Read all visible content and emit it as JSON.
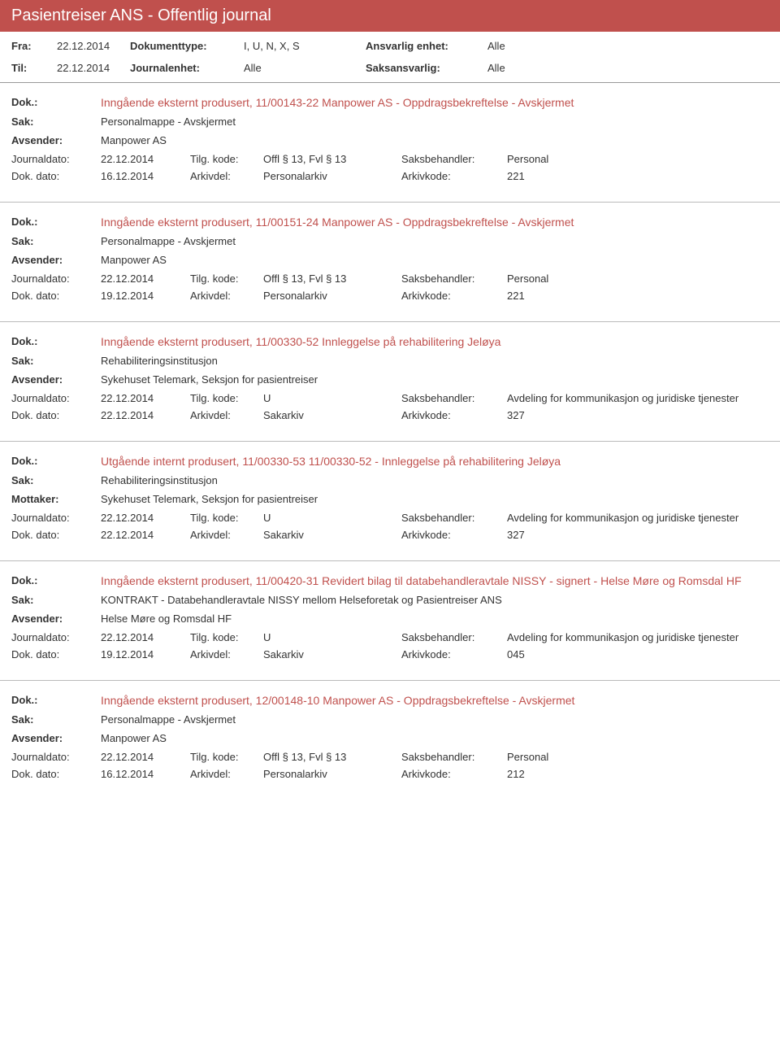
{
  "header": {
    "title": "Pasientreiser ANS - Offentlig journal"
  },
  "colors": {
    "accent": "#c0504d",
    "text": "#333333",
    "border": "#bbbbbb"
  },
  "filters": {
    "fra_label": "Fra:",
    "fra_val": "22.12.2014",
    "til_label": "Til:",
    "til_val": "22.12.2014",
    "doktype_label": "Dokumenttype:",
    "doktype_val": "I, U, N, X, S",
    "journalenhet_label": "Journalenhet:",
    "journalenhet_val": "Alle",
    "ansvarlig_label": "Ansvarlig enhet:",
    "ansvarlig_val": "Alle",
    "saksansvarlig_label": "Saksansvarlig:",
    "saksansvarlig_val": "Alle"
  },
  "labels": {
    "dok": "Dok.:",
    "sak": "Sak:",
    "avsender": "Avsender:",
    "mottaker": "Mottaker:",
    "journaldato": "Journaldato:",
    "tilgkode": "Tilg. kode:",
    "saksbehandler": "Saksbehandler:",
    "dokdato": "Dok. dato:",
    "arkivdel": "Arkivdel:",
    "arkivkode": "Arkivkode:"
  },
  "entries": [
    {
      "dok": "Inngående eksternt produsert, 11/00143-22 Manpower AS - Oppdragsbekreftelse - Avskjermet",
      "sak": "Personalmappe - Avskjermet",
      "party_label": "Avsender:",
      "party": "Manpower AS",
      "journaldato": "22.12.2014",
      "tilgkode": "Offl § 13, Fvl § 13",
      "saksbehandler": "Personal",
      "dokdato": "16.12.2014",
      "arkivdel": "Personalarkiv",
      "arkivkode": "221"
    },
    {
      "dok": "Inngående eksternt produsert, 11/00151-24 Manpower AS - Oppdragsbekreftelse - Avskjermet",
      "sak": "Personalmappe - Avskjermet",
      "party_label": "Avsender:",
      "party": "Manpower AS",
      "journaldato": "22.12.2014",
      "tilgkode": "Offl § 13, Fvl § 13",
      "saksbehandler": "Personal",
      "dokdato": "19.12.2014",
      "arkivdel": "Personalarkiv",
      "arkivkode": "221"
    },
    {
      "dok": "Inngående eksternt produsert, 11/00330-52 Innleggelse på rehabilitering Jeløya",
      "sak": "Rehabiliteringsinstitusjon",
      "party_label": "Avsender:",
      "party": "Sykehuset Telemark, Seksjon for pasientreiser",
      "journaldato": "22.12.2014",
      "tilgkode": "U",
      "saksbehandler": "Avdeling for kommunikasjon og juridiske tjenester",
      "dokdato": "22.12.2014",
      "arkivdel": "Sakarkiv",
      "arkivkode": "327"
    },
    {
      "dok": "Utgående internt produsert, 11/00330-53 11/00330-52 - Innleggelse på rehabilitering Jeløya",
      "sak": "Rehabiliteringsinstitusjon",
      "party_label": "Mottaker:",
      "party": "Sykehuset Telemark, Seksjon for pasientreiser",
      "journaldato": "22.12.2014",
      "tilgkode": "U",
      "saksbehandler": "Avdeling for kommunikasjon og juridiske tjenester",
      "dokdato": "22.12.2014",
      "arkivdel": "Sakarkiv",
      "arkivkode": "327"
    },
    {
      "dok": "Inngående eksternt produsert, 11/00420-31 Revidert bilag til databehandleravtale NISSY - signert - Helse Møre og Romsdal HF",
      "sak": "KONTRAKT - Databehandleravtale NISSY mellom Helseforetak og Pasientreiser ANS",
      "party_label": "Avsender:",
      "party": "Helse Møre og Romsdal HF",
      "journaldato": "22.12.2014",
      "tilgkode": "U",
      "saksbehandler": "Avdeling for kommunikasjon og juridiske tjenester",
      "dokdato": "19.12.2014",
      "arkivdel": "Sakarkiv",
      "arkivkode": "045"
    },
    {
      "dok": "Inngående eksternt produsert, 12/00148-10 Manpower AS - Oppdragsbekreftelse - Avskjermet",
      "sak": "Personalmappe - Avskjermet",
      "party_label": "Avsender:",
      "party": "Manpower AS",
      "journaldato": "22.12.2014",
      "tilgkode": "Offl § 13, Fvl § 13",
      "saksbehandler": "Personal",
      "dokdato": "16.12.2014",
      "arkivdel": "Personalarkiv",
      "arkivkode": "212"
    }
  ]
}
